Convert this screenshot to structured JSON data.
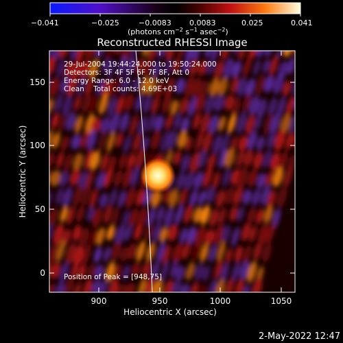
{
  "colorbar": {
    "ticks": [
      "−0.041",
      "−0.025",
      "−0.0083",
      "0.0083",
      "0.025",
      "0.041"
    ],
    "units_main": "(photons cm",
    "units_sup1": "−2",
    "units_mid1": " s",
    "units_sup2": "−1",
    "units_mid2": " asec",
    "units_sup3": "−2",
    "units_end": ")"
  },
  "title": "Reconstructed RHESSI Image",
  "info": {
    "line1": "29-Jul-2004 19:44:24.000 to 19:50:24.000",
    "line2": "Detectors: 3F 4F 5F 6F 7F 8F, Att 0",
    "line3": "Energy Range: 6.0 - 12.0 keV",
    "line4": "Clean    Total counts: 4.69E+03"
  },
  "peak_label": "Position of Peak = [948,75]",
  "axes": {
    "xlabel": "Heliocentric X (arcsec)",
    "ylabel": "Heliocentric Y (arcsec)",
    "xticks": [
      "900",
      "950",
      "1000",
      "1050"
    ],
    "yticks": [
      "0",
      "50",
      "100",
      "150"
    ],
    "xlim": [
      865,
      1060
    ],
    "ylim": [
      -15,
      175
    ]
  },
  "timestamp": "2-May-2022 12:47",
  "colors": {
    "bg": "#000000",
    "neg": "#5a2aa0",
    "pos_low": "#b01818",
    "pos_high": "#ff8a10",
    "peak": "#ffffc0"
  }
}
